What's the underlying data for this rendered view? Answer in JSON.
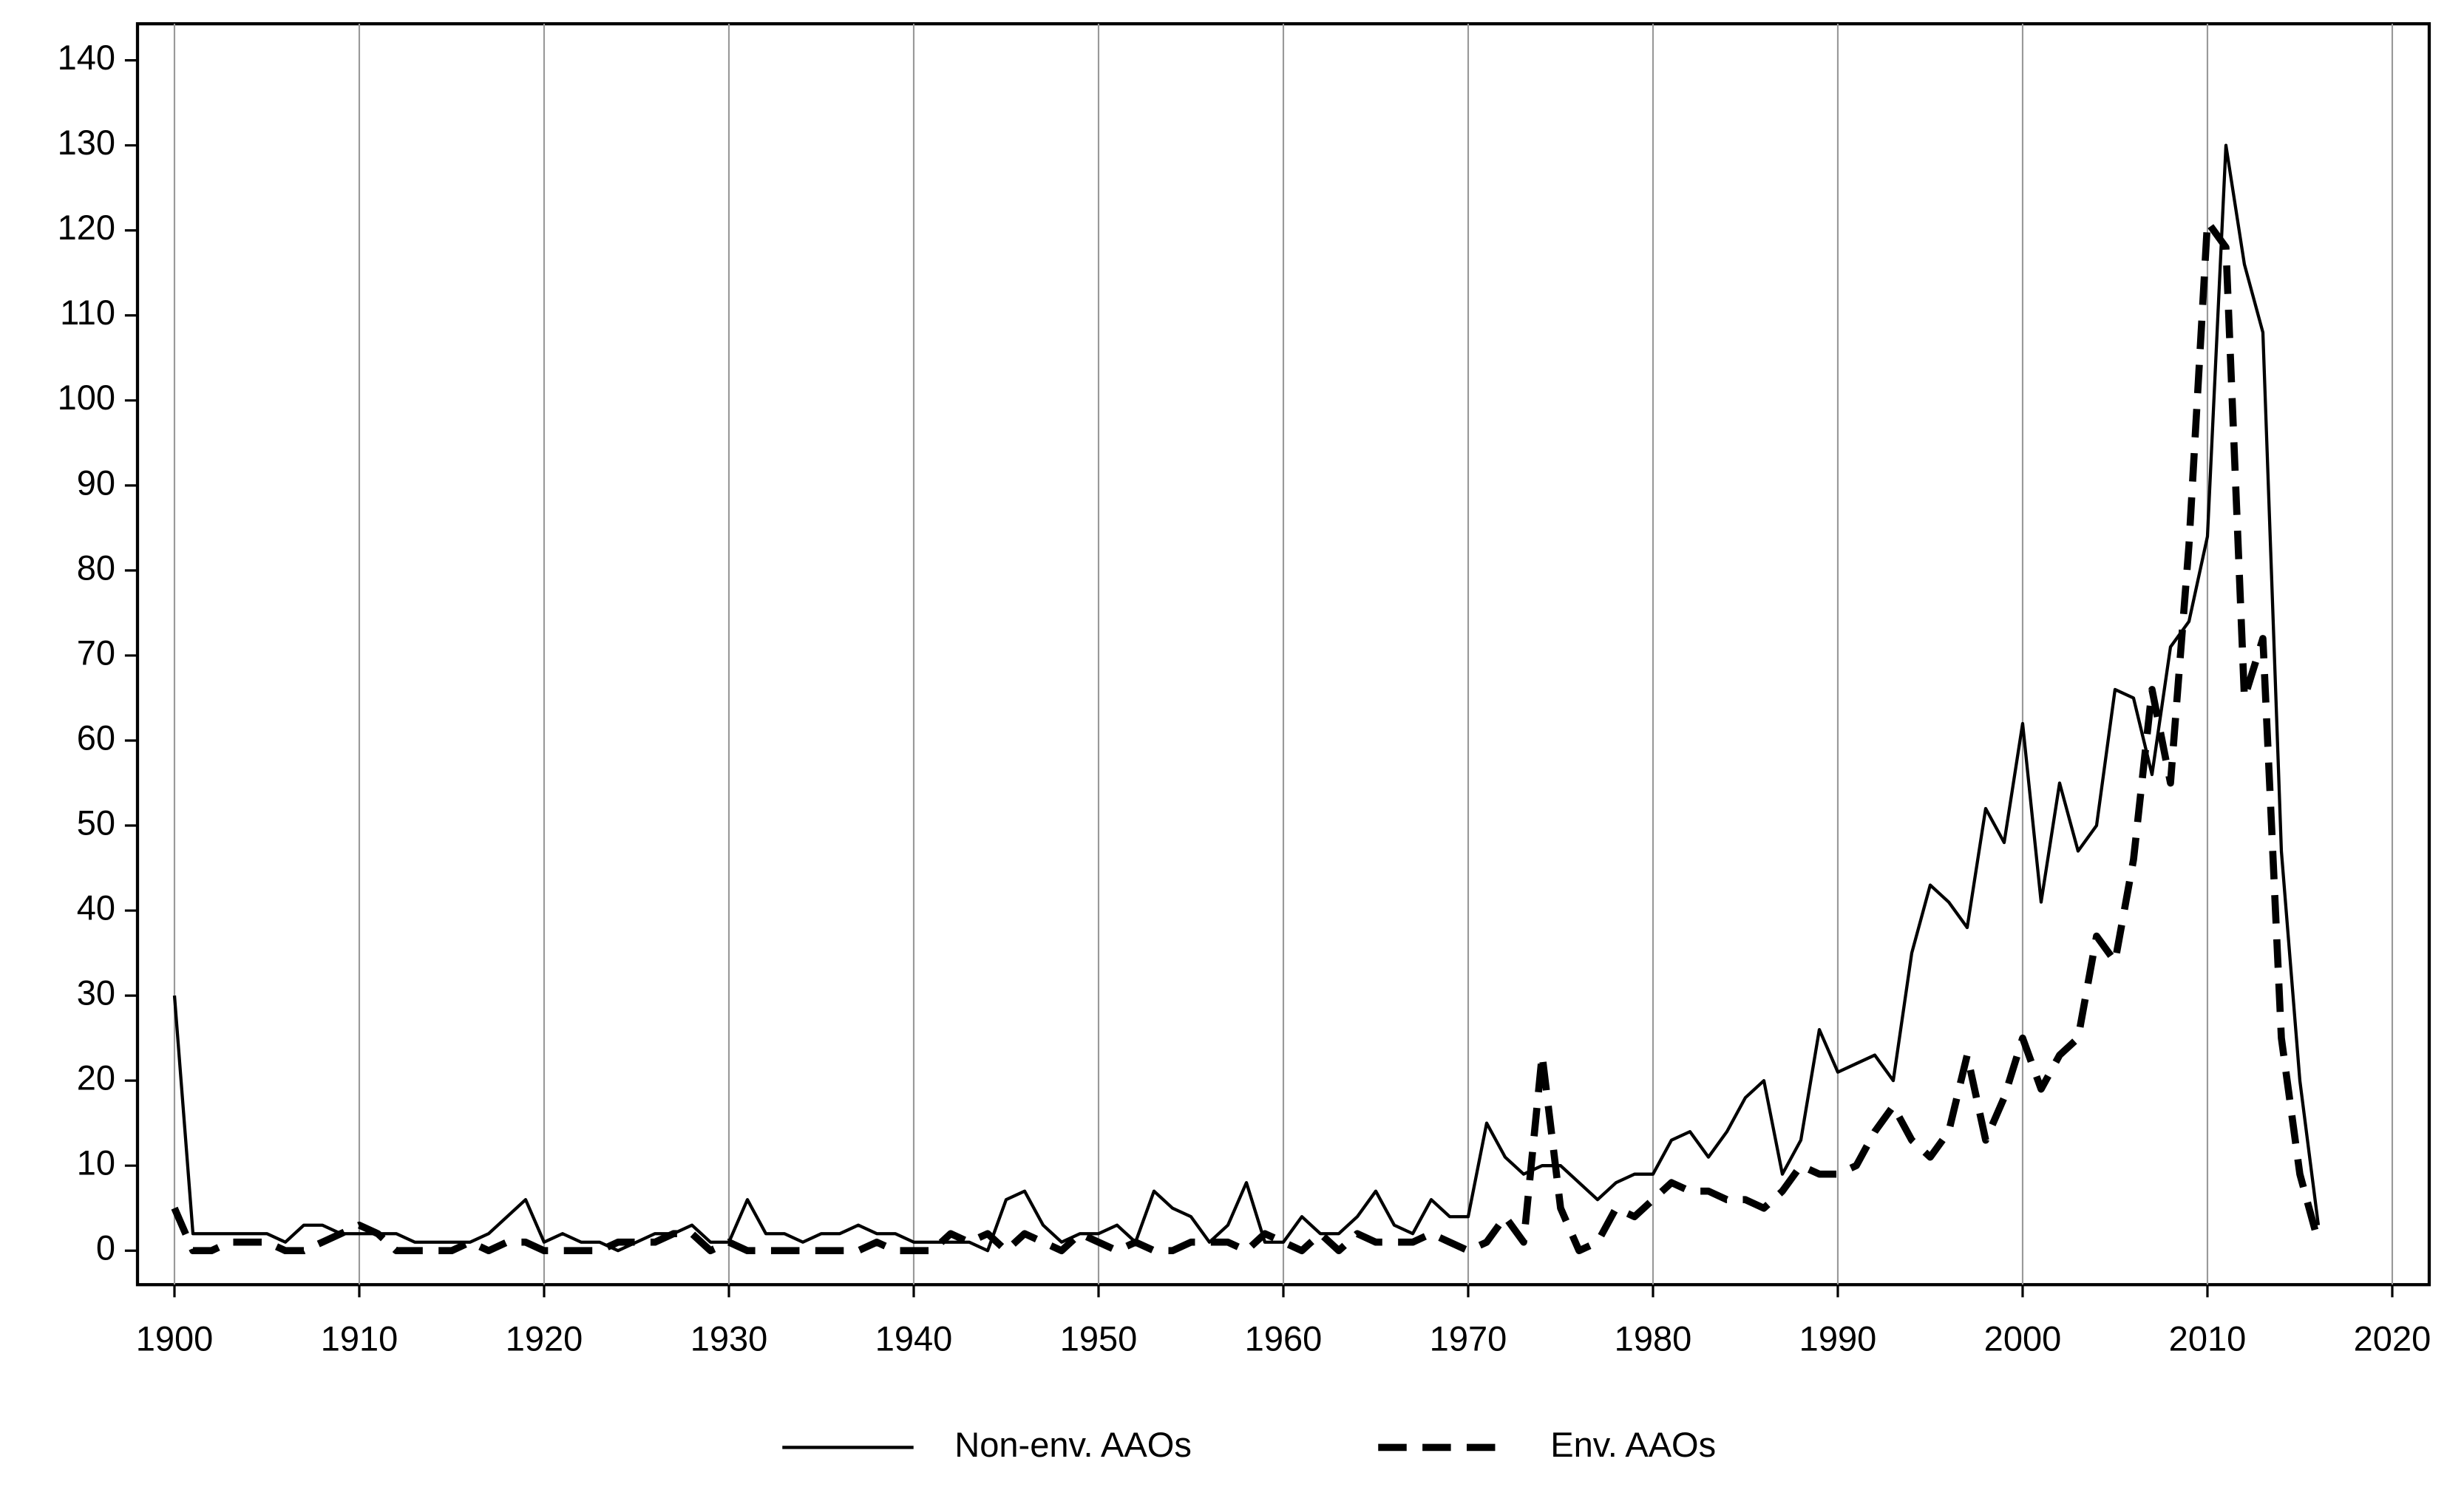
{
  "chart_data": {
    "type": "line",
    "x": [
      1900,
      1901,
      1902,
      1903,
      1904,
      1905,
      1906,
      1907,
      1908,
      1909,
      1910,
      1911,
      1912,
      1913,
      1914,
      1915,
      1916,
      1917,
      1918,
      1919,
      1920,
      1921,
      1922,
      1923,
      1924,
      1925,
      1926,
      1927,
      1928,
      1929,
      1930,
      1931,
      1932,
      1933,
      1934,
      1935,
      1936,
      1937,
      1938,
      1939,
      1940,
      1941,
      1942,
      1943,
      1944,
      1945,
      1946,
      1947,
      1948,
      1949,
      1950,
      1951,
      1952,
      1953,
      1954,
      1955,
      1956,
      1957,
      1958,
      1959,
      1960,
      1961,
      1962,
      1963,
      1964,
      1965,
      1966,
      1967,
      1968,
      1969,
      1970,
      1971,
      1972,
      1973,
      1974,
      1975,
      1976,
      1977,
      1978,
      1979,
      1980,
      1981,
      1982,
      1983,
      1984,
      1985,
      1986,
      1987,
      1988,
      1989,
      1990,
      1991,
      1992,
      1993,
      1994,
      1995,
      1996,
      1997,
      1998,
      1999,
      2000,
      2001,
      2002,
      2003,
      2004,
      2005,
      2006,
      2007,
      2008,
      2009,
      2010,
      2011,
      2012,
      2013,
      2014,
      2015,
      2016
    ],
    "series": [
      {
        "name": "Non-env. AAOs",
        "color": "#000000",
        "style": "solid",
        "values": [
          30,
          2,
          2,
          2,
          2,
          2,
          1,
          3,
          3,
          2,
          2,
          2,
          2,
          1,
          1,
          1,
          1,
          2,
          4,
          6,
          1,
          2,
          1,
          1,
          0,
          1,
          2,
          2,
          3,
          1,
          1,
          6,
          2,
          2,
          1,
          2,
          2,
          3,
          2,
          2,
          1,
          1,
          1,
          1,
          0,
          6,
          7,
          3,
          1,
          2,
          2,
          3,
          1,
          7,
          5,
          4,
          1,
          3,
          8,
          1,
          1,
          4,
          2,
          2,
          4,
          7,
          3,
          2,
          6,
          4,
          4,
          15,
          11,
          9,
          10,
          10,
          8,
          6,
          8,
          9,
          9,
          13,
          14,
          11,
          14,
          18,
          20,
          9,
          13,
          26,
          21,
          22,
          23,
          20,
          35,
          43,
          41,
          38,
          52,
          48,
          62,
          41,
          55,
          47,
          50,
          66,
          65,
          56,
          71,
          74,
          84,
          130,
          116,
          108,
          47,
          20,
          3
        ]
      },
      {
        "name": "Env. AAOs",
        "color": "#000000",
        "style": "dashed",
        "values": [
          5,
          0,
          0,
          1,
          1,
          1,
          0,
          0,
          1,
          2,
          3,
          2,
          0,
          0,
          0,
          0,
          1,
          0,
          1,
          1,
          0,
          0,
          0,
          0,
          1,
          1,
          1,
          2,
          2,
          0,
          1,
          0,
          0,
          0,
          0,
          0,
          0,
          0,
          1,
          0,
          0,
          0,
          2,
          1,
          2,
          0,
          2,
          1,
          0,
          2,
          1,
          0,
          1,
          0,
          0,
          1,
          1,
          1,
          0,
          2,
          1,
          0,
          2,
          0,
          2,
          1,
          1,
          1,
          2,
          1,
          0,
          1,
          4,
          1,
          23,
          5,
          0,
          1,
          5,
          4,
          6,
          8,
          7,
          7,
          6,
          6,
          5,
          7,
          10,
          9,
          9,
          10,
          14,
          17,
          13,
          11,
          14,
          23,
          13,
          18,
          25,
          19,
          23,
          25,
          37,
          34,
          46,
          66,
          55,
          83,
          121,
          118,
          65,
          72,
          25,
          9,
          1
        ]
      }
    ],
    "xlim": [
      1898,
      2022
    ],
    "xticks": [
      1900,
      1910,
      1920,
      1930,
      1940,
      1950,
      1960,
      1970,
      1980,
      1990,
      2000,
      2010,
      2020
    ],
    "ylim": [
      -4,
      144.3
    ],
    "yticks": [
      0,
      10,
      20,
      30,
      40,
      50,
      60,
      70,
      80,
      90,
      100,
      110,
      120,
      130,
      140
    ],
    "grid": "x",
    "legend": "bottom"
  }
}
